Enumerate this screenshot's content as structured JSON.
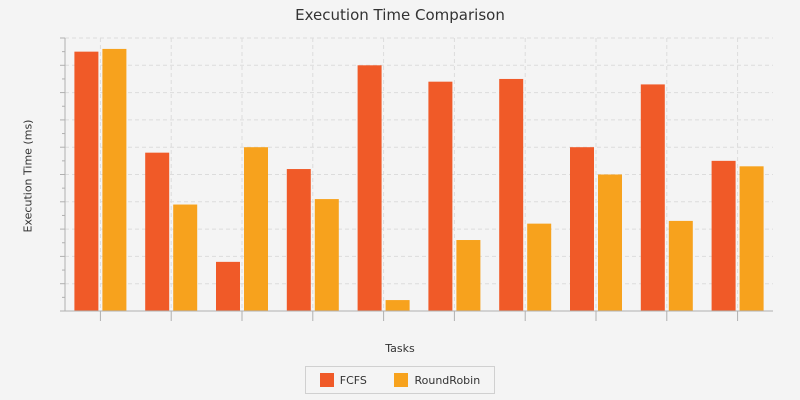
{
  "chart_data": {
    "type": "bar",
    "title": "Execution Time Comparison",
    "xlabel": "Tasks",
    "ylabel": "Execution Time (ms)",
    "categories": [
      "",
      "",
      "",
      "",
      "",
      "",
      "",
      "",
      "",
      ""
    ],
    "ylim": [
      0,
      100
    ],
    "grid": true,
    "legend_position": "bottom",
    "series": [
      {
        "name": "FCFS",
        "color": "#f05a28",
        "values": [
          95,
          58,
          18,
          52,
          90,
          84,
          85,
          60,
          83,
          55
        ]
      },
      {
        "name": "RoundRobin",
        "color": "#f7a21d",
        "values": [
          96,
          39,
          60,
          41,
          4,
          26,
          32,
          50,
          33,
          53
        ]
      }
    ]
  }
}
